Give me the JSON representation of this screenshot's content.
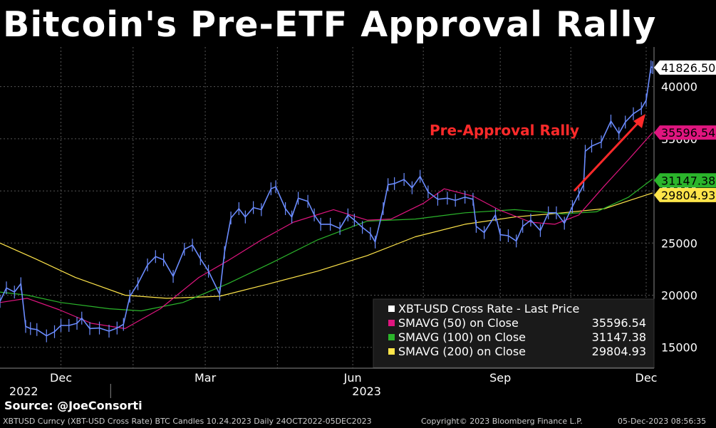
{
  "title": "Bitcoin's Pre-ETF Approval Rally",
  "source": "Source: @JoeConsorti",
  "footer": {
    "left": "XBTUSD Curncy (XBT-USD Cross Rate) BTC Candles 10.24.2023  Daily 24OCT2022-05DEC2023",
    "center": "Copyright© 2023 Bloomberg Finance L.P.",
    "right": "05-Dec-2023 08:56:35"
  },
  "colors": {
    "price": "#6b8cff",
    "sma50": "#e0157f",
    "sma100": "#2bb52b",
    "sma200": "#ffe54a",
    "annotation": "#ff2a2a",
    "grid": "#555555"
  },
  "chart_data": {
    "type": "line",
    "annotation": "Pre-Approval Rally",
    "x_ticks": [
      "Dec",
      "Mar",
      "Jun",
      "Sep",
      "Dec"
    ],
    "x_years": [
      "2022",
      "2023"
    ],
    "y_ticks": [
      15000,
      20000,
      25000,
      30000,
      35000,
      40000
    ],
    "ylim": [
      13000,
      43800
    ],
    "xlim": [
      "2022-10-24",
      "2023-12-05"
    ],
    "grid": true,
    "legend_position": "bottom-right",
    "legend": [
      {
        "label": "XBT-USD Cross Rate - Last Price",
        "value": ""
      },
      {
        "label": "SMAVG (50)  on Close",
        "value": "35596.54"
      },
      {
        "label": "SMAVG (100)  on Close",
        "value": "31147.38"
      },
      {
        "label": "SMAVG (200)  on Close",
        "value": "29804.93"
      }
    ],
    "last_values": [
      "41826.50",
      "35596.54",
      "31147.38",
      "29804.93"
    ],
    "series": [
      {
        "name": "XBT-USD Cross Rate - Last Price",
        "points": [
          [
            "2022-10-24",
            19400
          ],
          [
            "2022-10-28",
            20700
          ],
          [
            "2022-11-02",
            20300
          ],
          [
            "2022-11-06",
            21100
          ],
          [
            "2022-11-09",
            17000
          ],
          [
            "2022-11-12",
            16800
          ],
          [
            "2022-11-16",
            16700
          ],
          [
            "2022-11-22",
            16100
          ],
          [
            "2022-11-27",
            16500
          ],
          [
            "2022-12-01",
            17100
          ],
          [
            "2022-12-06",
            17100
          ],
          [
            "2022-12-11",
            17300
          ],
          [
            "2022-12-14",
            17800
          ],
          [
            "2022-12-19",
            16800
          ],
          [
            "2022-12-25",
            16850
          ],
          [
            "2022-12-31",
            16550
          ],
          [
            "2023-01-05",
            16850
          ],
          [
            "2023-01-09",
            17200
          ],
          [
            "2023-01-13",
            19900
          ],
          [
            "2023-01-18",
            21100
          ],
          [
            "2023-01-24",
            22900
          ],
          [
            "2023-01-29",
            23700
          ],
          [
            "2023-02-03",
            23400
          ],
          [
            "2023-02-09",
            21800
          ],
          [
            "2023-02-16",
            24400
          ],
          [
            "2023-02-21",
            24800
          ],
          [
            "2023-02-26",
            23500
          ],
          [
            "2023-03-03",
            22300
          ],
          [
            "2023-03-10",
            20100
          ],
          [
            "2023-03-13",
            24100
          ],
          [
            "2023-03-17",
            27400
          ],
          [
            "2023-03-22",
            28300
          ],
          [
            "2023-03-26",
            27500
          ],
          [
            "2023-03-31",
            28400
          ],
          [
            "2023-04-05",
            28200
          ],
          [
            "2023-04-11",
            30200
          ],
          [
            "2023-04-14",
            30400
          ],
          [
            "2023-04-20",
            28300
          ],
          [
            "2023-04-24",
            27500
          ],
          [
            "2023-04-28",
            29300
          ],
          [
            "2023-05-04",
            29000
          ],
          [
            "2023-05-08",
            27700
          ],
          [
            "2023-05-12",
            26800
          ],
          [
            "2023-05-18",
            26800
          ],
          [
            "2023-05-24",
            26400
          ],
          [
            "2023-05-29",
            27700
          ],
          [
            "2023-06-02",
            27200
          ],
          [
            "2023-06-07",
            26500
          ],
          [
            "2023-06-12",
            25900
          ],
          [
            "2023-06-15",
            25100
          ],
          [
            "2023-06-20",
            28300
          ],
          [
            "2023-06-23",
            30600
          ],
          [
            "2023-06-27",
            30700
          ],
          [
            "2023-07-03",
            31100
          ],
          [
            "2023-07-08",
            30300
          ],
          [
            "2023-07-13",
            31400
          ],
          [
            "2023-07-18",
            29900
          ],
          [
            "2023-07-24",
            29200
          ],
          [
            "2023-07-30",
            29300
          ],
          [
            "2023-08-04",
            29100
          ],
          [
            "2023-08-10",
            29400
          ],
          [
            "2023-08-15",
            29200
          ],
          [
            "2023-08-17",
            26600
          ],
          [
            "2023-08-22",
            26000
          ],
          [
            "2023-08-29",
            27700
          ],
          [
            "2023-09-01",
            25800
          ],
          [
            "2023-09-06",
            25700
          ],
          [
            "2023-09-11",
            25200
          ],
          [
            "2023-09-15",
            26600
          ],
          [
            "2023-09-20",
            27200
          ],
          [
            "2023-09-26",
            26200
          ],
          [
            "2023-10-01",
            27900
          ],
          [
            "2023-10-06",
            27900
          ],
          [
            "2023-10-11",
            26900
          ],
          [
            "2023-10-16",
            28500
          ],
          [
            "2023-10-20",
            29700
          ],
          [
            "2023-10-23",
            30600
          ],
          [
            "2023-10-24",
            33800
          ],
          [
            "2023-10-28",
            34300
          ],
          [
            "2023-11-03",
            34700
          ],
          [
            "2023-11-09",
            36700
          ],
          [
            "2023-11-14",
            35500
          ],
          [
            "2023-11-18",
            36600
          ],
          [
            "2023-11-23",
            37400
          ],
          [
            "2023-11-28",
            37900
          ],
          [
            "2023-12-01",
            38700
          ],
          [
            "2023-12-04",
            41900
          ],
          [
            "2023-12-05",
            41826.5
          ]
        ]
      },
      {
        "name": "SMAVG (50)  on Close",
        "points": [
          [
            "2022-10-24",
            19300
          ],
          [
            "2022-11-10",
            19700
          ],
          [
            "2022-11-30",
            18600
          ],
          [
            "2022-12-20",
            17300
          ],
          [
            "2023-01-10",
            16800
          ],
          [
            "2023-02-01",
            18700
          ],
          [
            "2023-02-25",
            21700
          ],
          [
            "2023-03-15",
            23300
          ],
          [
            "2023-04-05",
            25300
          ],
          [
            "2023-04-25",
            27000
          ],
          [
            "2023-05-20",
            28200
          ],
          [
            "2023-06-10",
            27200
          ],
          [
            "2023-06-25",
            27300
          ],
          [
            "2023-07-15",
            28800
          ],
          [
            "2023-07-28",
            30200
          ],
          [
            "2023-08-15",
            29500
          ],
          [
            "2023-08-31",
            28200
          ],
          [
            "2023-09-20",
            27000
          ],
          [
            "2023-10-05",
            26800
          ],
          [
            "2023-10-20",
            27700
          ],
          [
            "2023-11-05",
            30500
          ],
          [
            "2023-11-20",
            33000
          ],
          [
            "2023-12-05",
            35596.54
          ]
        ]
      },
      {
        "name": "SMAVG (100)  on Close",
        "points": [
          [
            "2022-10-24",
            20300
          ],
          [
            "2022-11-10",
            20000
          ],
          [
            "2022-12-01",
            19300
          ],
          [
            "2022-12-31",
            18700
          ],
          [
            "2023-01-20",
            18500
          ],
          [
            "2023-02-15",
            19300
          ],
          [
            "2023-03-15",
            21100
          ],
          [
            "2023-04-10",
            23000
          ],
          [
            "2023-05-10",
            25300
          ],
          [
            "2023-06-10",
            27100
          ],
          [
            "2023-07-10",
            27300
          ],
          [
            "2023-08-10",
            27900
          ],
          [
            "2023-09-10",
            28200
          ],
          [
            "2023-10-10",
            27800
          ],
          [
            "2023-10-31",
            28000
          ],
          [
            "2023-11-20",
            29400
          ],
          [
            "2023-12-05",
            31147.38
          ]
        ]
      },
      {
        "name": "SMAVG (200)  on Close",
        "points": [
          [
            "2022-10-24",
            25000
          ],
          [
            "2022-11-15",
            23500
          ],
          [
            "2022-12-10",
            21700
          ],
          [
            "2023-01-10",
            20000
          ],
          [
            "2023-02-05",
            19700
          ],
          [
            "2023-03-10",
            19900
          ],
          [
            "2023-04-10",
            21100
          ],
          [
            "2023-05-10",
            22300
          ],
          [
            "2023-06-10",
            23800
          ],
          [
            "2023-07-10",
            25600
          ],
          [
            "2023-08-10",
            26800
          ],
          [
            "2023-09-10",
            27500
          ],
          [
            "2023-10-10",
            27900
          ],
          [
            "2023-11-05",
            28300
          ],
          [
            "2023-12-05",
            29804.93
          ]
        ]
      }
    ]
  }
}
